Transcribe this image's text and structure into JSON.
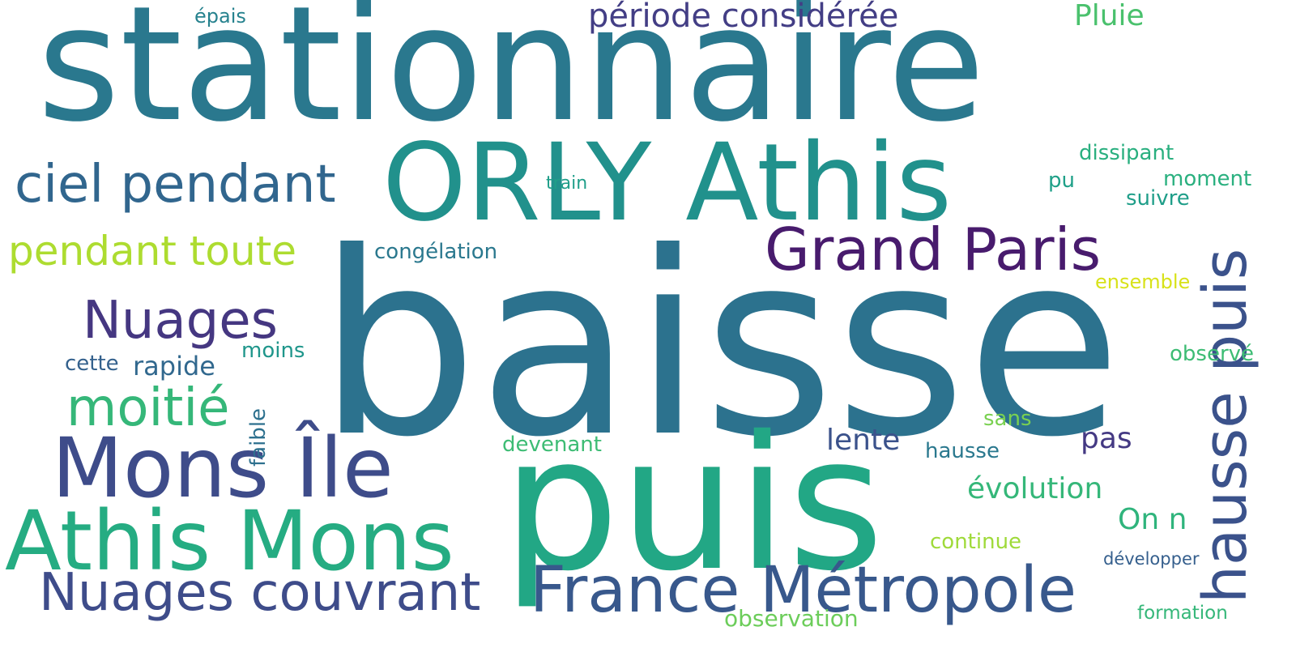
{
  "words": [
    {
      "text": "stationnaire",
      "color": "#2a788e"
    },
    {
      "text": "ORLY Athis",
      "color": "#21918c"
    },
    {
      "text": "baisse",
      "color": "#2c728e"
    },
    {
      "text": "puis",
      "color": "#22a785"
    },
    {
      "text": "Grand Paris",
      "color": "#481b6d"
    },
    {
      "text": "ciel pendant",
      "color": "#31668e"
    },
    {
      "text": "pendant toute",
      "color": "#addc30"
    },
    {
      "text": "Nuages",
      "color": "#453781"
    },
    {
      "text": "moitié",
      "color": "#35b779"
    },
    {
      "text": "Mons Île",
      "color": "#3e4c8a"
    },
    {
      "text": "Athis Mons",
      "color": "#25ac82"
    },
    {
      "text": "Nuages couvrant",
      "color": "#3e4c8a"
    },
    {
      "text": "France Métropole",
      "color": "#38588c"
    },
    {
      "text": "hausse puis",
      "color": "#3b528b"
    },
    {
      "text": "période considérée",
      "color": "#433e85"
    },
    {
      "text": "Pluie",
      "color": "#4ac16d"
    },
    {
      "text": "épais",
      "color": "#26828e"
    },
    {
      "text": "dissipant",
      "color": "#29af7f"
    },
    {
      "text": "moment",
      "color": "#2ab07f"
    },
    {
      "text": "train",
      "color": "#1f9e89"
    },
    {
      "text": "pu",
      "color": "#1fa088"
    },
    {
      "text": "suivre",
      "color": "#1f9e89"
    },
    {
      "text": "congélation",
      "color": "#2a788e"
    },
    {
      "text": "ensemble",
      "color": "#d8e219"
    },
    {
      "text": "cette",
      "color": "#34618d"
    },
    {
      "text": "rapide",
      "color": "#31688e"
    },
    {
      "text": "moins",
      "color": "#1f968b"
    },
    {
      "text": "observé",
      "color": "#3dbc74"
    },
    {
      "text": "faible",
      "color": "#2d708e"
    },
    {
      "text": "sans",
      "color": "#7ad151"
    },
    {
      "text": "lente",
      "color": "#3b528b"
    },
    {
      "text": "pas",
      "color": "#443983"
    },
    {
      "text": "devenant",
      "color": "#3dbc74"
    },
    {
      "text": "hausse",
      "color": "#2a788e"
    },
    {
      "text": "évolution",
      "color": "#35b779"
    },
    {
      "text": "On n",
      "color": "#2fb47c"
    },
    {
      "text": "continue",
      "color": "#9fda3a"
    },
    {
      "text": "développer",
      "color": "#355f8d"
    },
    {
      "text": "formation",
      "color": "#35b779"
    },
    {
      "text": "observation",
      "color": "#6ccd5a"
    }
  ]
}
